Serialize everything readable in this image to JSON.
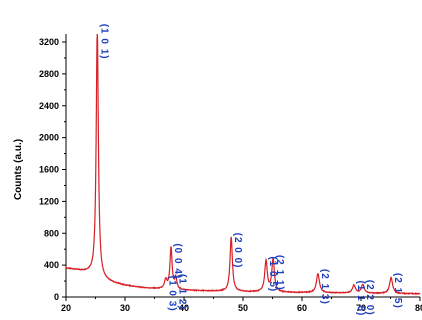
{
  "chart_data": {
    "type": "line",
    "ylabel": "Counts (a.u.)",
    "xlim": [
      20,
      80
    ],
    "ylim": [
      0,
      3200
    ],
    "x_ticks": [
      "20",
      "30",
      "40",
      "50",
      "60",
      "70",
      "80"
    ],
    "y_ticks": [
      "0",
      "400",
      "800",
      "1200",
      "1600",
      "2000",
      "2400",
      "2800",
      "3200"
    ],
    "line_color": "#d61f26",
    "label_color": "#1e3fbf",
    "baseline": [
      [
        20,
        360
      ],
      [
        22,
        335
      ],
      [
        24,
        300
      ],
      [
        25,
        250
      ],
      [
        26,
        215
      ],
      [
        28,
        175
      ],
      [
        30,
        145
      ],
      [
        32,
        125
      ],
      [
        34,
        110
      ],
      [
        36,
        100
      ],
      [
        40,
        85
      ],
      [
        44,
        75
      ],
      [
        48,
        68
      ],
      [
        52,
        62
      ],
      [
        56,
        58
      ],
      [
        60,
        55
      ],
      [
        64,
        52
      ],
      [
        68,
        48
      ],
      [
        72,
        45
      ],
      [
        76,
        42
      ],
      [
        80,
        40
      ]
    ],
    "peaks": [
      {
        "label": "(1 0 1)",
        "x": 25.3,
        "height": 3130,
        "width": 0.22
      },
      {
        "label": "(1 0 3)",
        "x": 36.9,
        "height": 110,
        "width": 0.25
      },
      {
        "label": "(0 0 4)",
        "x": 37.8,
        "height": 520,
        "width": 0.22
      },
      {
        "label": "(1 1 2)",
        "x": 38.6,
        "height": 140,
        "width": 0.22
      },
      {
        "label": "(2 0 0)",
        "x": 48.0,
        "height": 680,
        "width": 0.24
      },
      {
        "label": "(1 0 5)",
        "x": 53.9,
        "height": 390,
        "width": 0.26
      },
      {
        "label": "(2 1 1)",
        "x": 55.1,
        "height": 410,
        "width": 0.26
      },
      {
        "label": "(2 1 3)",
        "x": 62.7,
        "height": 240,
        "width": 0.3
      },
      {
        "label": "(1 1 6)",
        "x": 68.8,
        "height": 100,
        "width": 0.3
      },
      {
        "label": "(2 2 0)",
        "x": 70.3,
        "height": 110,
        "width": 0.3
      },
      {
        "label": "(2 1 5)",
        "x": 75.1,
        "height": 200,
        "width": 0.3
      }
    ]
  }
}
